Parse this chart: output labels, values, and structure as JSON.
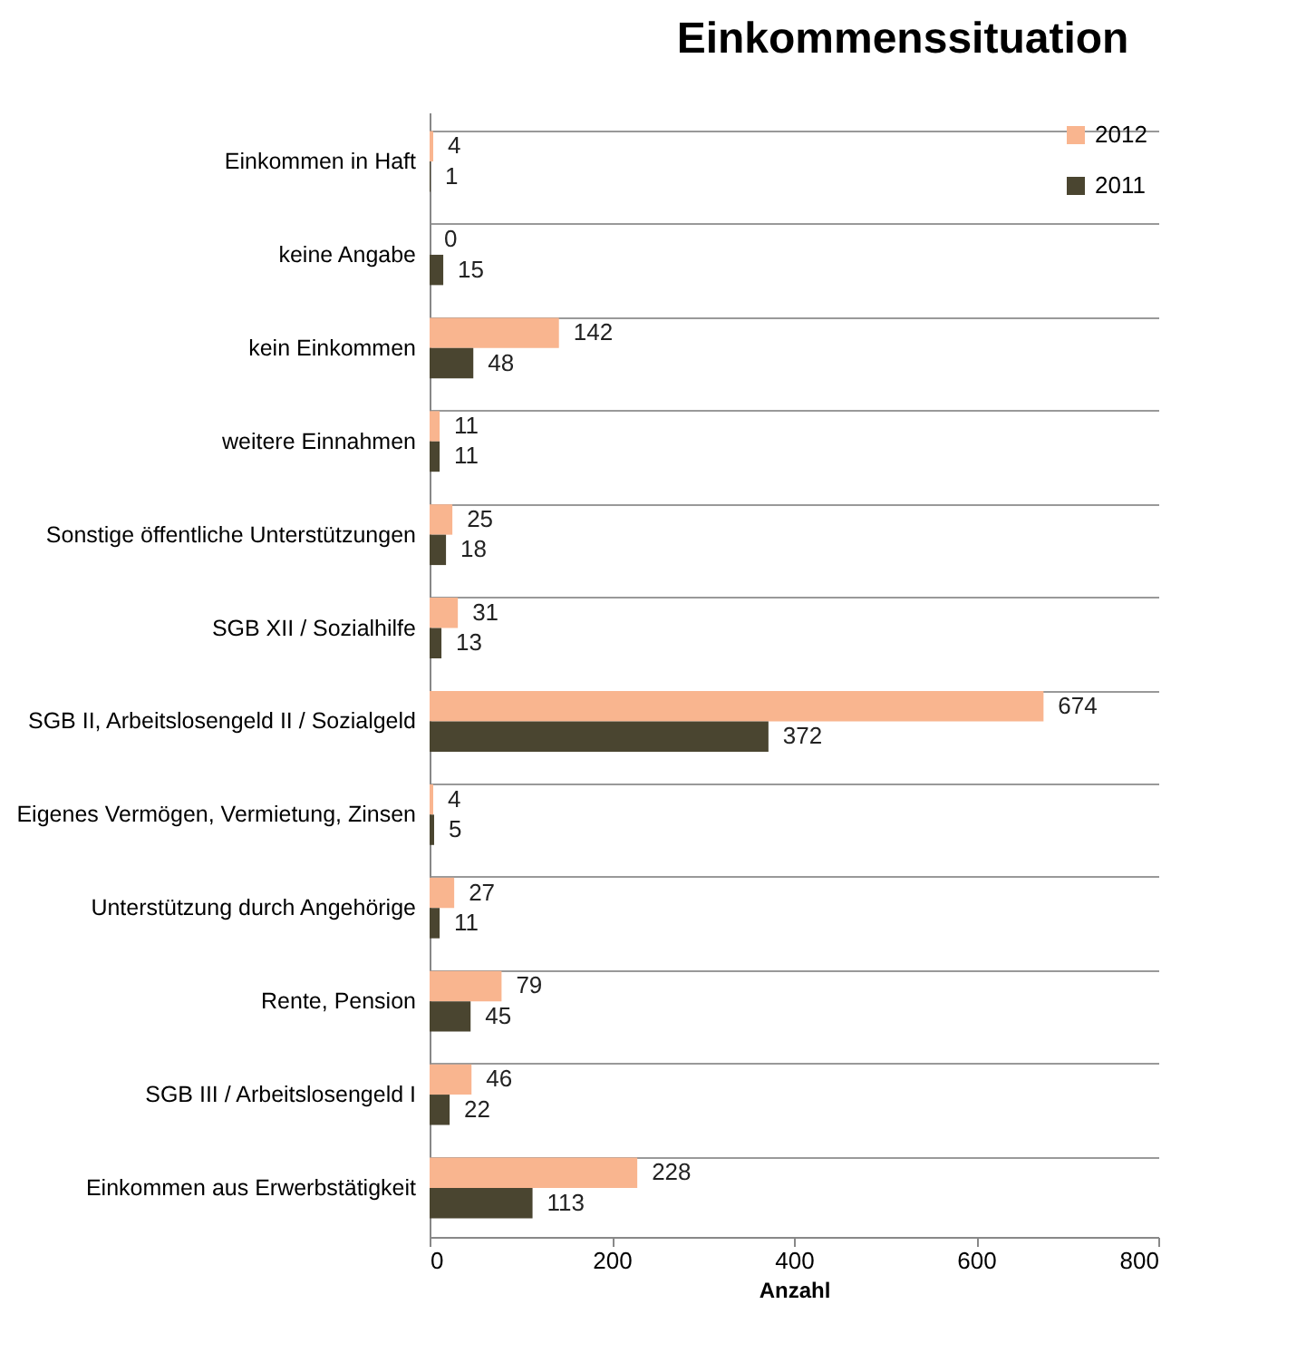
{
  "chart_data": {
    "type": "bar",
    "orientation": "horizontal",
    "title": "Einkommenssituation",
    "xlabel": "Anzahl",
    "categories": [
      "Einkommen in Haft",
      "keine Angabe",
      "kein Einkommen",
      "weitere Einnahmen",
      "Sonstige öffentliche Unterstützungen",
      "SGB XII / Sozialhilfe",
      "SGB II, Arbeitslosengeld II / Sozialgeld",
      "Eigenes Vermögen, Vermietung, Zinsen",
      "Unterstützung durch Angehörige",
      "Rente, Pension",
      "SGB III / Arbeitslosengeld I",
      "Einkommen aus Erwerbstätigkeit"
    ],
    "series": [
      {
        "name": "2012",
        "color": "#f9b58f",
        "values": [
          4,
          0,
          142,
          11,
          25,
          31,
          674,
          4,
          27,
          79,
          46,
          228
        ]
      },
      {
        "name": "2011",
        "color": "#4a4530",
        "values": [
          1,
          15,
          48,
          11,
          18,
          13,
          372,
          5,
          11,
          45,
          22,
          113
        ]
      }
    ],
    "xlim": [
      0,
      800
    ],
    "xticks": [
      0,
      200,
      400,
      600,
      800
    ],
    "grid": "y",
    "legend": "top right",
    "data_labels": true
  }
}
